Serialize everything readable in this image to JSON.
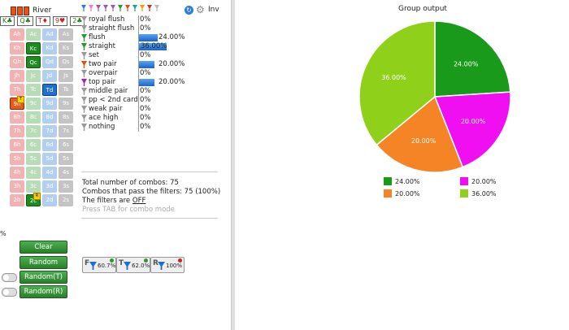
{
  "header": {
    "street_label": "River",
    "inv_label": "Inv",
    "board": [
      "K♣",
      "Q♣",
      "T♦",
      "9♥",
      "2♣"
    ],
    "filter_icon_colors": [
      "#2a7fd4",
      "#ff7bbf",
      "#9b59b6",
      "#9b59b6",
      "#9b59b6",
      "#2a9a2a",
      "#e05010",
      "#1aa1a1",
      "#ff9900",
      "#c03030",
      "#bbbbbb"
    ]
  },
  "grid": {
    "rows": [
      [
        "Ah",
        "Ac",
        "Ad",
        "As"
      ],
      [
        "Kh",
        "Kc",
        "Kd",
        "Ks"
      ],
      [
        "Qh",
        "Qc",
        "Qd",
        "Qs"
      ],
      [
        "Jh",
        "Jc",
        "Jd",
        "Js"
      ],
      [
        "Th",
        "Tc",
        "Td",
        "Ts"
      ],
      [
        "9h",
        "9c",
        "9d",
        "9s"
      ],
      [
        "8h",
        "8c",
        "8d",
        "8s"
      ],
      [
        "7h",
        "7c",
        "7d",
        "7s"
      ],
      [
        "6h",
        "6c",
        "6d",
        "6s"
      ],
      [
        "5h",
        "5c",
        "5d",
        "5s"
      ],
      [
        "4h",
        "4c",
        "4d",
        "4s"
      ],
      [
        "3h",
        "3c",
        "3d",
        "3s"
      ],
      [
        "2h",
        "2c",
        "2d",
        "2s"
      ]
    ],
    "selected": [
      "Kc",
      "Qc",
      "Td",
      "9h",
      "2c"
    ],
    "badges": {
      "9h": "T",
      "2c": "R"
    }
  },
  "left_edge_text": "%",
  "hands": [
    {
      "name": "royal flush",
      "pct": "0%",
      "bar": 0,
      "color": "#999999"
    },
    {
      "name": "straight flush",
      "pct": "0%",
      "bar": 0,
      "color": "#999999"
    },
    {
      "name": "flush",
      "pct": "24.00%",
      "bar": 24,
      "color": "#2a9a2a"
    },
    {
      "name": "straight",
      "pct": "36.00%",
      "bar": 36,
      "color": "#2a9a2a"
    },
    {
      "name": "set",
      "pct": "0%",
      "bar": 0,
      "color": "#999999"
    },
    {
      "name": "two pair",
      "pct": "20.00%",
      "bar": 20,
      "color": "#e05010"
    },
    {
      "name": "overpair",
      "pct": "0%",
      "bar": 0,
      "color": "#999999"
    },
    {
      "name": "top pair",
      "pct": "20.00%",
      "bar": 20,
      "color": "#b020b0"
    },
    {
      "name": "middle pair",
      "pct": "0%",
      "bar": 0,
      "color": "#999999"
    },
    {
      "name": "pp < 2nd card",
      "pct": "0%",
      "bar": 0,
      "color": "#999999"
    },
    {
      "name": "weak pair",
      "pct": "0%",
      "bar": 0,
      "color": "#999999"
    },
    {
      "name": "ace high",
      "pct": "0%",
      "bar": 0,
      "color": "#999999"
    },
    {
      "name": "nothing",
      "pct": "0%",
      "bar": 0,
      "color": "#999999"
    }
  ],
  "info": {
    "total": "Total number of combos: 75",
    "pass": "Combos that pass the filters: 75 (100%)",
    "filters_prefix": "The filters are ",
    "filters_state": "OFF",
    "tab_hint": "Press TAB for combo mode"
  },
  "buttons": {
    "clear": "Clear",
    "random": "Random",
    "random_t": "Random(T)",
    "random_r": "Random(R)"
  },
  "filter_buttons": [
    {
      "letter": "F",
      "pct": "60.7%",
      "dot": "#2a9a2a"
    },
    {
      "letter": "T",
      "pct": "62.0%",
      "dot": "#2a9a2a"
    },
    {
      "letter": "R",
      "pct": "100%",
      "dot": "#d02020"
    }
  ],
  "chart_data": {
    "type": "pie",
    "title": "Group output",
    "slices": [
      {
        "label": "24.00%",
        "value": 24.0,
        "color": "#1a9a1a"
      },
      {
        "label": "20.00%",
        "value": 20.0,
        "color": "#f00ff0"
      },
      {
        "label": "20.00%",
        "value": 20.0,
        "color": "#f58426"
      },
      {
        "label": "36.00%",
        "value": 36.0,
        "color": "#8fd11a"
      }
    ],
    "legend": [
      {
        "label": "24.00%",
        "color": "#1a9a1a"
      },
      {
        "label": "20.00%",
        "color": "#f00ff0"
      },
      {
        "label": "20.00%",
        "color": "#f58426"
      },
      {
        "label": "36.00%",
        "color": "#8fd11a"
      }
    ],
    "legend_position": "bottom"
  }
}
